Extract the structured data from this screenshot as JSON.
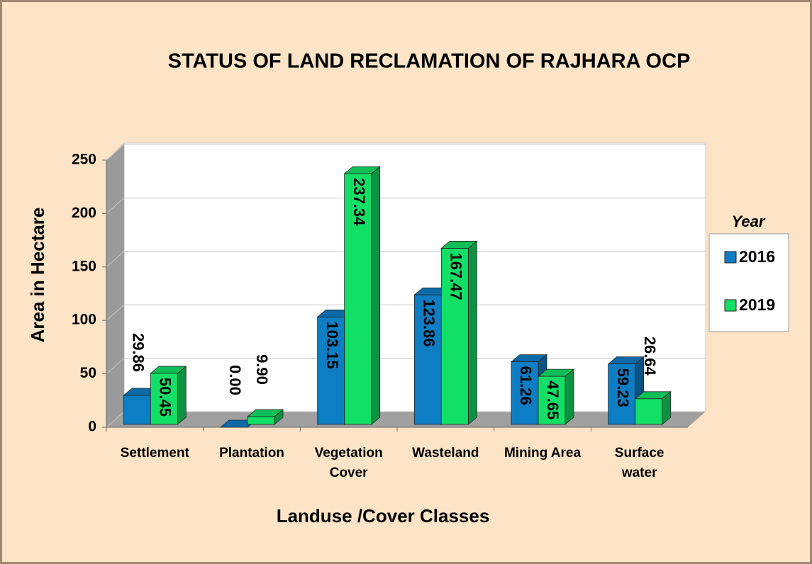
{
  "chart_data": {
    "type": "bar",
    "title": "STATUS OF LAND RECLAMATION OF RAJHARA OCP",
    "x_label": "Landuse /Cover Classes",
    "y_label": "Area in Hectare",
    "categories": [
      "Settlement",
      "Plantation",
      "Vegetation Cover",
      "Wasteland",
      "Mining Area",
      "Surface water"
    ],
    "series": [
      {
        "name": "2016",
        "color": "#0e7ec4",
        "values": [
          29.86,
          0,
          103.15,
          123.86,
          61.26,
          59.23
        ],
        "value_labels": [
          "29.86",
          "0.00",
          "103.15",
          "123.86",
          "61.26",
          "59.23"
        ]
      },
      {
        "name": "2019",
        "color": "#12e066",
        "values": [
          50.45,
          9.9,
          237.34,
          167.47,
          47.65,
          26.64
        ],
        "value_labels": [
          "50.45",
          "9.90",
          "237.34",
          "167.47",
          "47.65",
          "26.64"
        ]
      }
    ],
    "legend_title": "Year",
    "ylim": [
      0,
      250
    ],
    "yticks": [
      0,
      50,
      100,
      150,
      200,
      250
    ],
    "grid": true,
    "legend": "right"
  }
}
